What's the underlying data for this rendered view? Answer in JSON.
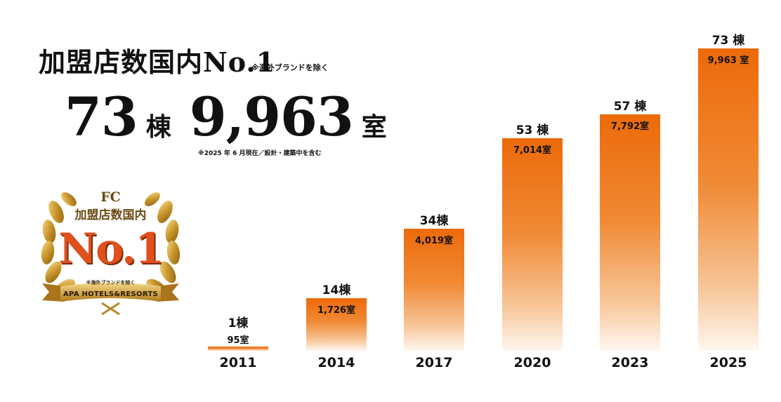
{
  "headline": "加盟店数国内No.1",
  "headline_note": "※海外ブランドを除く",
  "total": {
    "buildings_value": "73",
    "buildings_unit": "棟",
    "rooms_value": "9,963",
    "rooms_unit": "室",
    "note": "※2025 年 6 月現在／設計・建築中を含む"
  },
  "badge": {
    "line1": "FC",
    "line2": "加盟店数国内",
    "rank": "No.1",
    "note": "※海外ブランドを除く",
    "brand": "APA HOTELS&RESORTS"
  },
  "chart_data": {
    "type": "bar",
    "categories": [
      "2011",
      "2014",
      "2017",
      "2020",
      "2023",
      "2025"
    ],
    "series": [
      {
        "values": [
          95,
          1726,
          4019,
          7014,
          7792,
          9963
        ]
      }
    ],
    "bar_labels": [
      {
        "buildings": "1棟",
        "rooms": "95室"
      },
      {
        "buildings": "14棟",
        "rooms": "1,726室"
      },
      {
        "buildings": "34棟",
        "rooms": "4,019室"
      },
      {
        "buildings": "53 棟",
        "rooms": "7,014室"
      },
      {
        "buildings": "57 棟",
        "rooms": "7,792室"
      },
      {
        "buildings": "73 棟",
        "rooms": "9,963 室"
      }
    ],
    "buildings": [
      1,
      14,
      34,
      53,
      57,
      73
    ],
    "ylim": [
      0,
      9963
    ],
    "grid": false,
    "colors": {
      "bar_top": "#ec6a0a",
      "bar_bottom": "#fff7f0"
    }
  }
}
